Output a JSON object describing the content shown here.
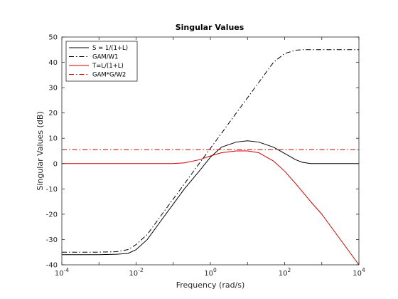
{
  "chart_data": {
    "type": "line",
    "title": "Singular Values",
    "xlabel": "Frequency (rad/s)",
    "ylabel": "Singular Values (dB)",
    "x_scale": "log",
    "xlim": [
      0.0001,
      10000
    ],
    "ylim": [
      -40,
      50
    ],
    "grid": false,
    "legend_position": "top-left",
    "x_ticks": [
      {
        "value": 0.0001,
        "base": "10",
        "exp": "-4"
      },
      {
        "value": 0.01,
        "base": "10",
        "exp": "-2"
      },
      {
        "value": 1,
        "base": "10",
        "exp": "0"
      },
      {
        "value": 100,
        "base": "10",
        "exp": "2"
      },
      {
        "value": 10000,
        "base": "10",
        "exp": "4"
      }
    ],
    "y_ticks": [
      -40,
      -30,
      -20,
      -10,
      0,
      10,
      20,
      30,
      40,
      50
    ],
    "series": [
      {
        "name": "S = 1/(1+L)",
        "color": "#000000",
        "style": "solid",
        "x": [
          0.0001,
          0.001,
          0.003,
          0.006,
          0.01,
          0.02,
          0.05,
          0.1,
          0.2,
          0.5,
          1,
          2,
          5,
          10,
          20,
          50,
          100,
          200,
          300,
          500,
          1000,
          10000
        ],
        "y": [
          -36,
          -36,
          -35.8,
          -35.5,
          -34,
          -30,
          -22,
          -16,
          -10,
          -3,
          2.5,
          6.5,
          8.5,
          9,
          8.5,
          6.5,
          4,
          1.5,
          0.5,
          0,
          0,
          0
        ]
      },
      {
        "name": "GAM/W1",
        "color": "#000000",
        "style": "dashdot",
        "x": [
          0.0001,
          0.001,
          0.003,
          0.006,
          0.01,
          0.02,
          0.05,
          0.1,
          0.2,
          0.5,
          1,
          2,
          5,
          10,
          20,
          50,
          100,
          200,
          300,
          500,
          1000,
          10000
        ],
        "y": [
          -35,
          -35,
          -34.8,
          -34,
          -32,
          -28,
          -20,
          -14,
          -8,
          0,
          6,
          12,
          20,
          26,
          32,
          40,
          43.5,
          44.8,
          45,
          45,
          45,
          45
        ]
      },
      {
        "name": "T=L/(1+L)",
        "color": "#cc0000",
        "style": "solid",
        "x": [
          0.0001,
          0.01,
          0.1,
          0.2,
          0.5,
          1,
          2,
          5,
          10,
          20,
          50,
          100,
          200,
          500,
          1000,
          10000
        ],
        "y": [
          0,
          0,
          0,
          0.3,
          1.5,
          3,
          4.3,
          5,
          5,
          4.3,
          1,
          -3,
          -8,
          -15,
          -20,
          -40
        ]
      },
      {
        "name": "GAM*G/W2",
        "color": "#cc0000",
        "style": "dashdot",
        "x": [
          0.0001,
          10000
        ],
        "y": [
          5.5,
          5.5
        ]
      }
    ]
  }
}
